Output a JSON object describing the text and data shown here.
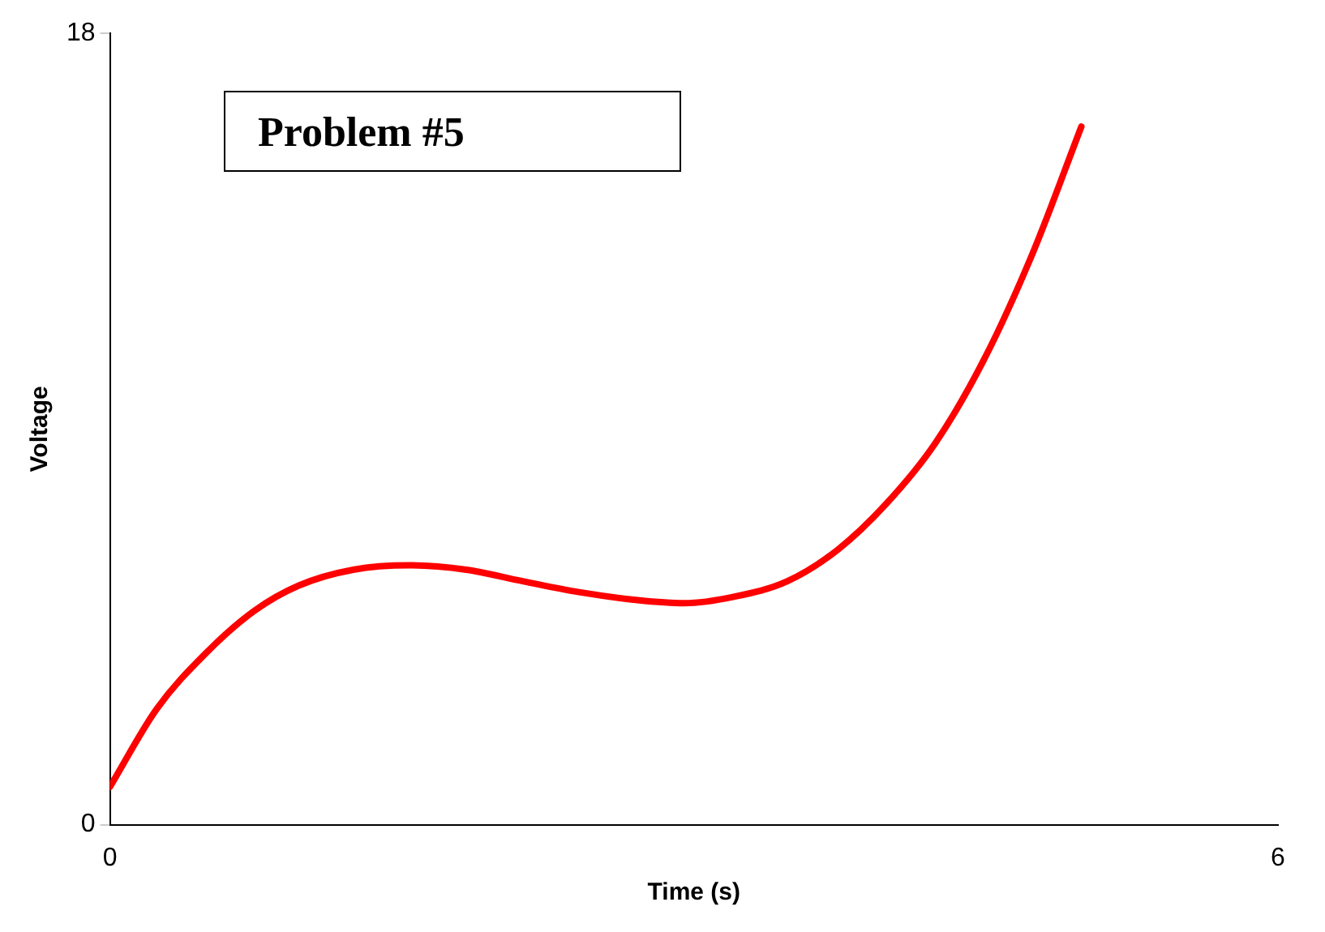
{
  "chart_data": {
    "type": "line",
    "xlabel": "Time (s)",
    "ylabel": "Voltage",
    "annotations": [
      "Problem #5"
    ],
    "x": [
      0,
      0.24,
      0.49,
      0.74,
      0.97,
      1.25,
      1.54,
      1.83,
      2.12,
      2.41,
      2.71,
      2.95,
      3.2,
      3.48,
      3.74,
      3.99,
      4.24,
      4.49,
      4.74,
      4.99
    ],
    "series": [
      {
        "color": "#ff0000",
        "values": [
          0.86,
          2.63,
          3.89,
          4.86,
          5.44,
          5.8,
          5.9,
          5.8,
          5.54,
          5.29,
          5.11,
          5.04,
          5.18,
          5.54,
          6.26,
          7.31,
          8.68,
          10.58,
          13.0,
          15.88
        ]
      }
    ],
    "xlim": [
      0,
      6
    ],
    "ylim": [
      0,
      18
    ],
    "xticks": [
      0,
      6
    ],
    "yticks": [
      0,
      18
    ],
    "grid": false,
    "legend": false,
    "marker": "none",
    "line_style": "solid"
  }
}
